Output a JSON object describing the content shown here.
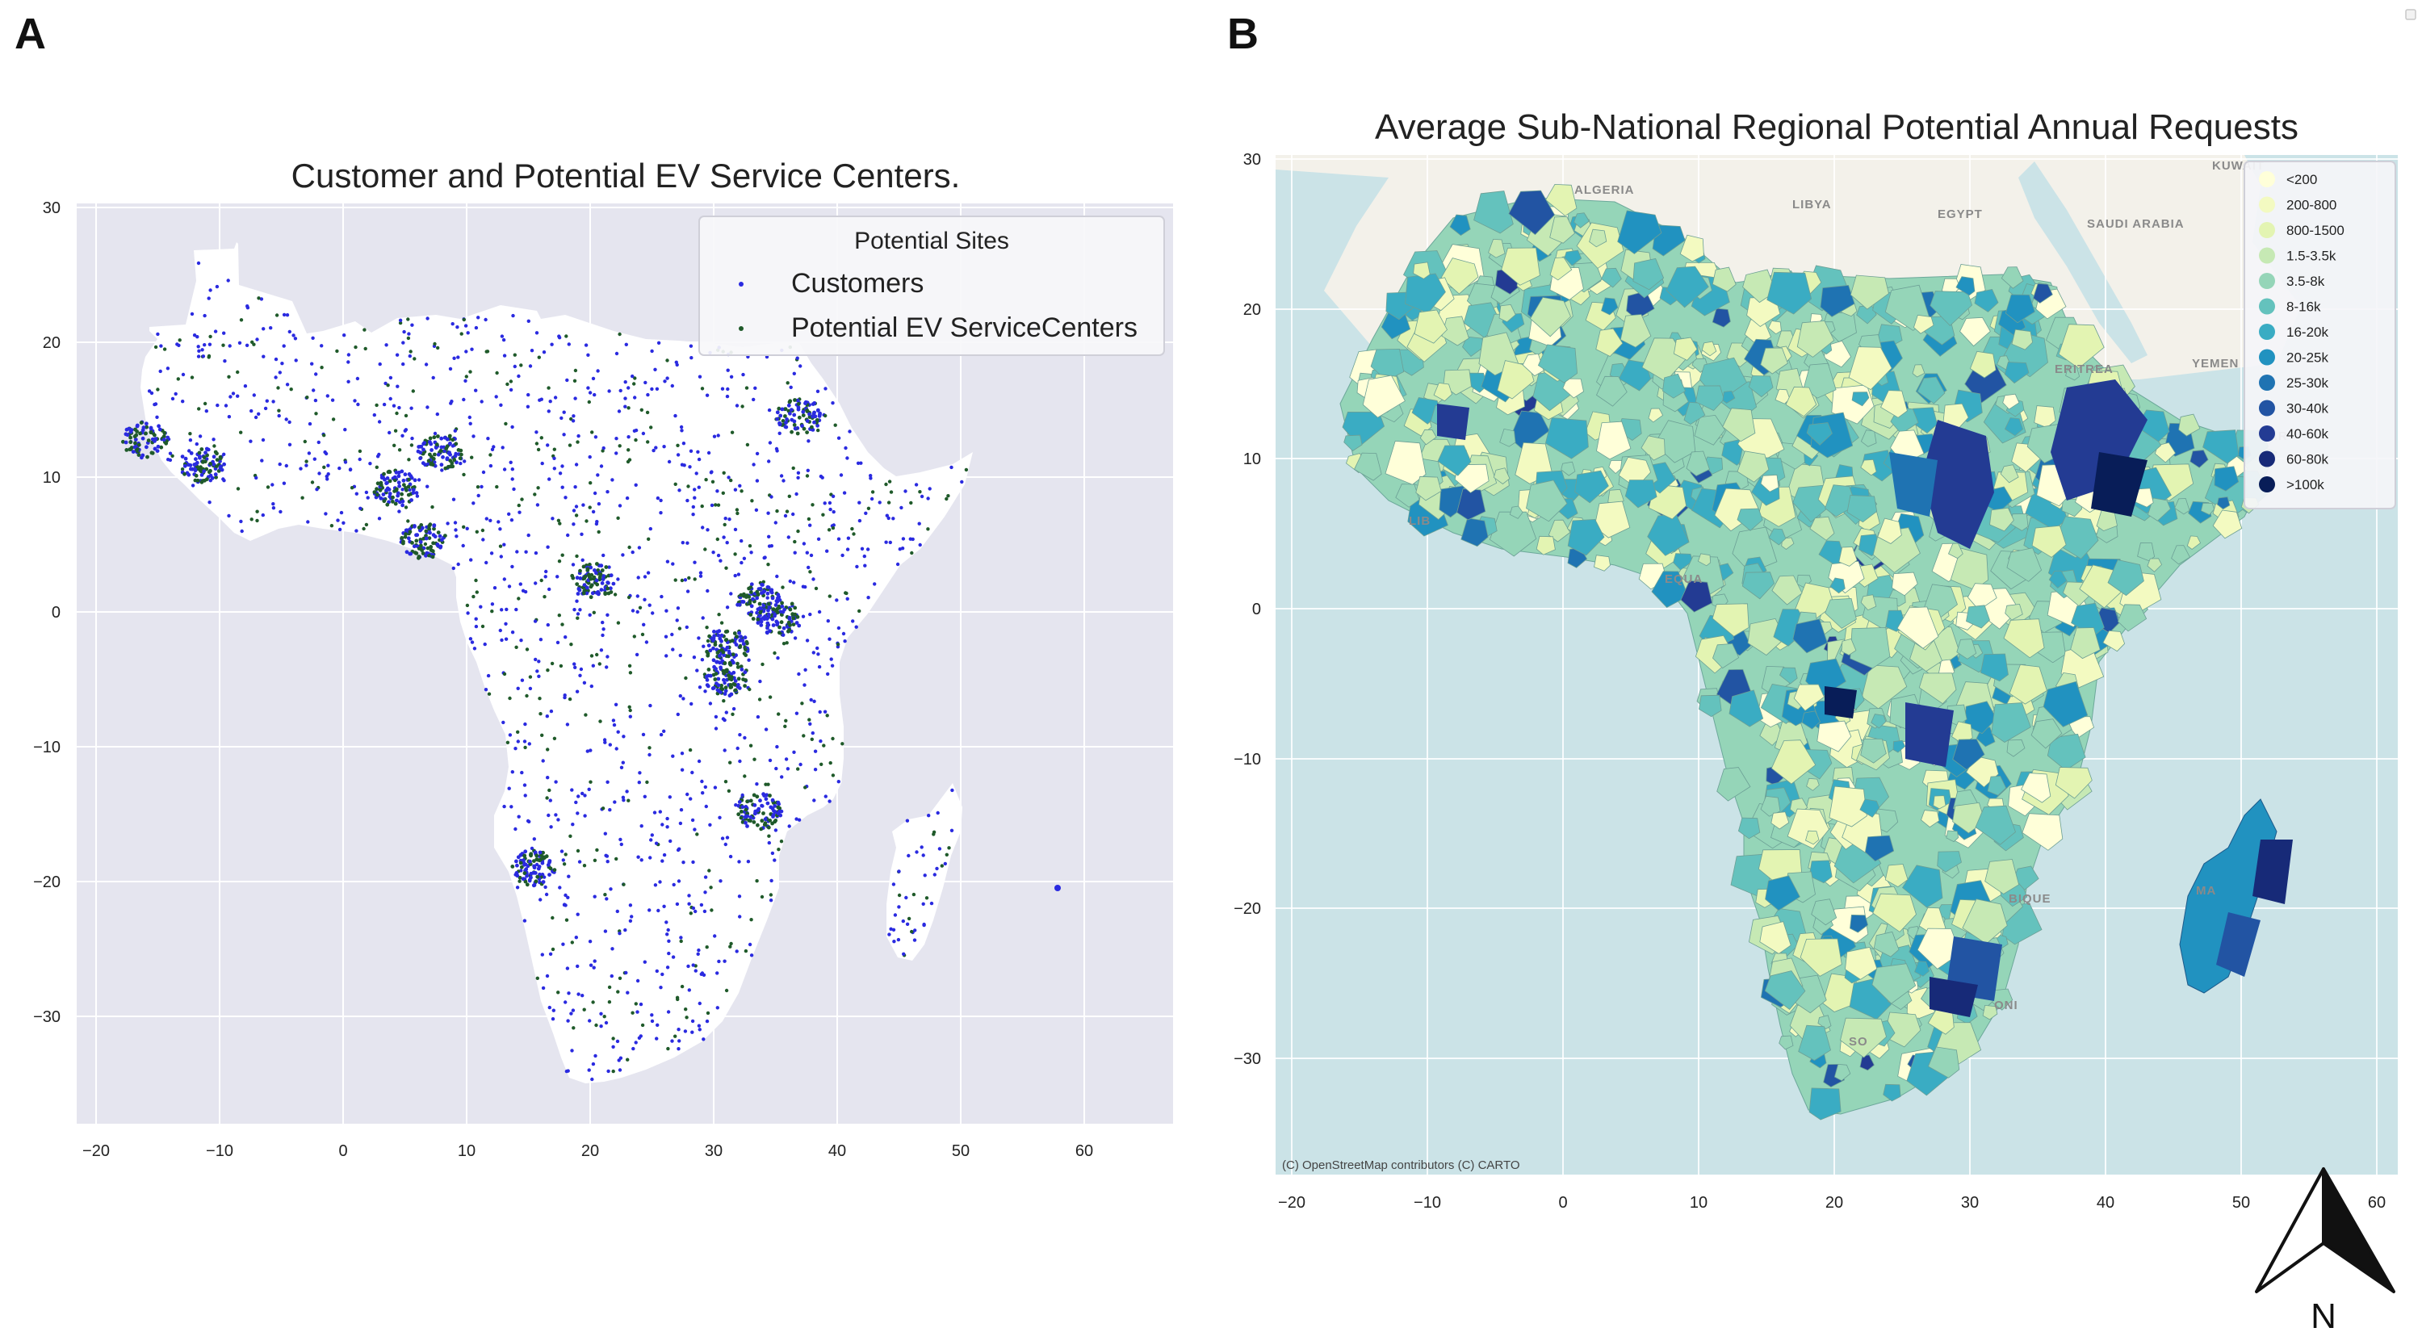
{
  "panel_a": {
    "letter": "A",
    "title": "Customer and Potential EV Service Centers.",
    "x_ticks": [
      "−20",
      "−10",
      "0",
      "10",
      "20",
      "30",
      "40",
      "50",
      "60"
    ],
    "y_ticks": [
      "30",
      "20",
      "10",
      "0",
      "−10",
      "−20",
      "−30"
    ],
    "legend": {
      "title": "Potential Sites",
      "items": [
        {
          "label": "Customers",
          "color": "#2a2ae0"
        },
        {
          "label": "Potential EV ServiceCenters",
          "color": "#1f5a2a"
        }
      ]
    },
    "colors": {
      "plot_bg": "#e5e5ef",
      "land": "#ffffff",
      "grid": "#ffffff"
    }
  },
  "panel_b": {
    "letter": "B",
    "title": "Average Sub-National Regional Potential Annual Requests",
    "x_ticks": [
      "−20",
      "−10",
      "0",
      "10",
      "20",
      "30",
      "40",
      "50",
      "60"
    ],
    "y_ticks": [
      "30",
      "20",
      "10",
      "0",
      "−10",
      "−20",
      "−30"
    ],
    "attribution": "(C) OpenStreetMap contributors (C) CARTO",
    "basemap_labels": [
      "ALGERIA",
      "LIBYA",
      "EGYPT",
      "KUWAIT",
      "SAUDI ARABIA",
      "YEMEN",
      "ERITREA",
      "EQUA",
      "BIQUE",
      "MA",
      "AR",
      "LIB",
      "ONI",
      "SO"
    ],
    "legend": {
      "items": [
        {
          "label": "<200",
          "color": "#ffffd9"
        },
        {
          "label": "200-800",
          "color": "#f3fac1"
        },
        {
          "label": "800-1500",
          "color": "#e3f4b2"
        },
        {
          "label": "1.5-3.5k",
          "color": "#c6e9b4"
        },
        {
          "label": "3.5-8k",
          "color": "#95d5b8"
        },
        {
          "label": "8-16k",
          "color": "#64c2bd"
        },
        {
          "label": "16-20k",
          "color": "#3aacc3"
        },
        {
          "label": "20-25k",
          "color": "#2192c0"
        },
        {
          "label": "25-30k",
          "color": "#1f73b2"
        },
        {
          "label": "30-40k",
          "color": "#2254a3"
        },
        {
          "label": "40-60k",
          "color": "#233b93"
        },
        {
          "label": "60-80k",
          "color": "#172a78"
        },
        {
          "label": ">100k",
          "color": "#081d58"
        }
      ]
    },
    "colors": {
      "sea": "#cbe3e7",
      "land_basemap": "#f3f1ea"
    }
  },
  "north_arrow": {
    "label": "N"
  }
}
